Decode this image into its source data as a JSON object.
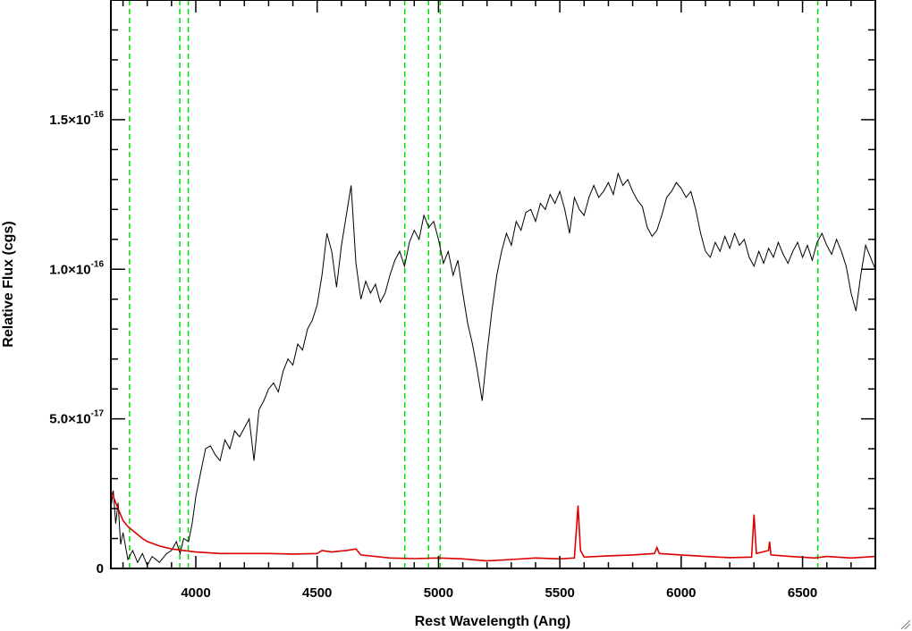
{
  "chart_data": {
    "type": "line",
    "title": "",
    "xlabel": "Rest Wavelength (Ang)",
    "ylabel": "Relative Flux (cgs)",
    "xlim": [
      3650,
      6800
    ],
    "ylim": [
      0,
      1.9e-16
    ],
    "x_ticks": [
      {
        "value": 4000,
        "label": "4000"
      },
      {
        "value": 4500,
        "label": "4500"
      },
      {
        "value": 5000,
        "label": "5000"
      },
      {
        "value": 5500,
        "label": "5500"
      },
      {
        "value": 6000,
        "label": "6000"
      },
      {
        "value": 6500,
        "label": "6500"
      }
    ],
    "y_ticks": [
      {
        "value": 0,
        "base": "0",
        "exp": ""
      },
      {
        "value": 5e-17,
        "base": "5.0×10",
        "exp": "-17"
      },
      {
        "value": 1e-16,
        "base": "1.0×10",
        "exp": "-16"
      },
      {
        "value": 1.5e-16,
        "base": "1.5×10",
        "exp": "-16"
      }
    ],
    "reference_lines": {
      "color": "#00dd00",
      "style": "dashed",
      "x": [
        3727,
        3934,
        3969,
        4861,
        4959,
        5007,
        6563
      ]
    },
    "series": [
      {
        "color": "#000000",
        "points": [
          [
            3650,
            2e-17
          ],
          [
            3660,
            2.6e-17
          ],
          [
            3670,
            1.5e-17
          ],
          [
            3680,
            2.2e-17
          ],
          [
            3690,
            8e-18
          ],
          [
            3700,
            1.2e-17
          ],
          [
            3720,
            3e-18
          ],
          [
            3740,
            6e-18
          ],
          [
            3760,
            2e-18
          ],
          [
            3780,
            5e-18
          ],
          [
            3800,
            1e-18
          ],
          [
            3820,
            4e-18
          ],
          [
            3850,
            2e-18
          ],
          [
            3880,
            5e-18
          ],
          [
            3900,
            6e-18
          ],
          [
            3920,
            9e-18
          ],
          [
            3935,
            5e-18
          ],
          [
            3950,
            1e-17
          ],
          [
            3970,
            9e-18
          ],
          [
            3985,
            1.5e-17
          ],
          [
            4000,
            2.4e-17
          ],
          [
            4020,
            3.2e-17
          ],
          [
            4040,
            4e-17
          ],
          [
            4060,
            4.1e-17
          ],
          [
            4080,
            3.8e-17
          ],
          [
            4100,
            3.6e-17
          ],
          [
            4120,
            4.3e-17
          ],
          [
            4140,
            4e-17
          ],
          [
            4160,
            4.6e-17
          ],
          [
            4180,
            4.4e-17
          ],
          [
            4200,
            4.7e-17
          ],
          [
            4220,
            5e-17
          ],
          [
            4240,
            3.6e-17
          ],
          [
            4260,
            5.3e-17
          ],
          [
            4280,
            5.6e-17
          ],
          [
            4300,
            6e-17
          ],
          [
            4320,
            6.2e-17
          ],
          [
            4340,
            5.9e-17
          ],
          [
            4360,
            6.6e-17
          ],
          [
            4380,
            7e-17
          ],
          [
            4400,
            6.8e-17
          ],
          [
            4420,
            7.5e-17
          ],
          [
            4440,
            7.3e-17
          ],
          [
            4460,
            8e-17
          ],
          [
            4480,
            8.3e-17
          ],
          [
            4500,
            8.8e-17
          ],
          [
            4520,
            9.8e-17
          ],
          [
            4540,
            1.12e-16
          ],
          [
            4560,
            1.06e-16
          ],
          [
            4580,
            9.4e-17
          ],
          [
            4600,
            1.08e-16
          ],
          [
            4620,
            1.18e-16
          ],
          [
            4640,
            1.28e-16
          ],
          [
            4660,
            1.02e-16
          ],
          [
            4680,
            9e-17
          ],
          [
            4700,
            9.6e-17
          ],
          [
            4720,
            9.2e-17
          ],
          [
            4740,
            9.5e-17
          ],
          [
            4760,
            8.9e-17
          ],
          [
            4780,
            9.2e-17
          ],
          [
            4800,
            9.8e-17
          ],
          [
            4820,
            1.03e-16
          ],
          [
            4840,
            1.06e-16
          ],
          [
            4860,
            1.01e-16
          ],
          [
            4880,
            1.09e-16
          ],
          [
            4900,
            1.13e-16
          ],
          [
            4920,
            1.1e-16
          ],
          [
            4940,
            1.18e-16
          ],
          [
            4960,
            1.14e-16
          ],
          [
            4980,
            1.16e-16
          ],
          [
            5000,
            1.1e-16
          ],
          [
            5020,
            1.02e-16
          ],
          [
            5040,
            1.06e-16
          ],
          [
            5060,
            9.8e-17
          ],
          [
            5080,
            1.03e-16
          ],
          [
            5100,
            9.2e-17
          ],
          [
            5120,
            8.2e-17
          ],
          [
            5140,
            7.5e-17
          ],
          [
            5160,
            6.6e-17
          ],
          [
            5180,
            5.6e-17
          ],
          [
            5200,
            7.2e-17
          ],
          [
            5220,
            8.6e-17
          ],
          [
            5240,
            9.8e-17
          ],
          [
            5260,
            1.06e-16
          ],
          [
            5280,
            1.12e-16
          ],
          [
            5300,
            1.08e-16
          ],
          [
            5320,
            1.16e-16
          ],
          [
            5340,
            1.13e-16
          ],
          [
            5360,
            1.19e-16
          ],
          [
            5380,
            1.2e-16
          ],
          [
            5400,
            1.16e-16
          ],
          [
            5420,
            1.22e-16
          ],
          [
            5440,
            1.2e-16
          ],
          [
            5460,
            1.25e-16
          ],
          [
            5480,
            1.22e-16
          ],
          [
            5500,
            1.26e-16
          ],
          [
            5520,
            1.2e-16
          ],
          [
            5540,
            1.12e-16
          ],
          [
            5560,
            1.24e-16
          ],
          [
            5580,
            1.2e-16
          ],
          [
            5600,
            1.18e-16
          ],
          [
            5620,
            1.24e-16
          ],
          [
            5640,
            1.28e-16
          ],
          [
            5660,
            1.24e-16
          ],
          [
            5680,
            1.26e-16
          ],
          [
            5700,
            1.29e-16
          ],
          [
            5720,
            1.25e-16
          ],
          [
            5740,
            1.32e-16
          ],
          [
            5760,
            1.28e-16
          ],
          [
            5780,
            1.3e-16
          ],
          [
            5800,
            1.26e-16
          ],
          [
            5820,
            1.23e-16
          ],
          [
            5840,
            1.21e-16
          ],
          [
            5860,
            1.14e-16
          ],
          [
            5880,
            1.11e-16
          ],
          [
            5900,
            1.13e-16
          ],
          [
            5920,
            1.18e-16
          ],
          [
            5940,
            1.24e-16
          ],
          [
            5960,
            1.26e-16
          ],
          [
            5980,
            1.29e-16
          ],
          [
            6000,
            1.27e-16
          ],
          [
            6020,
            1.24e-16
          ],
          [
            6040,
            1.26e-16
          ],
          [
            6060,
            1.2e-16
          ],
          [
            6080,
            1.12e-16
          ],
          [
            6100,
            1.06e-16
          ],
          [
            6120,
            1.04e-16
          ],
          [
            6140,
            1.09e-16
          ],
          [
            6160,
            1.06e-16
          ],
          [
            6180,
            1.11e-16
          ],
          [
            6200,
            1.07e-16
          ],
          [
            6220,
            1.12e-16
          ],
          [
            6240,
            1.08e-16
          ],
          [
            6260,
            1.1e-16
          ],
          [
            6280,
            1.04e-16
          ],
          [
            6300,
            1.01e-16
          ],
          [
            6320,
            1.06e-16
          ],
          [
            6340,
            1.02e-16
          ],
          [
            6360,
            1.07e-16
          ],
          [
            6380,
            1.04e-16
          ],
          [
            6400,
            1.09e-16
          ],
          [
            6420,
            1.05e-16
          ],
          [
            6440,
            1.02e-16
          ],
          [
            6460,
            1.06e-16
          ],
          [
            6480,
            1.09e-16
          ],
          [
            6500,
            1.04e-16
          ],
          [
            6520,
            1.08e-16
          ],
          [
            6540,
            1.03e-16
          ],
          [
            6560,
            1.09e-16
          ],
          [
            6580,
            1.12e-16
          ],
          [
            6600,
            1.08e-16
          ],
          [
            6620,
            1.05e-16
          ],
          [
            6640,
            1.1e-16
          ],
          [
            6660,
            1.06e-16
          ],
          [
            6680,
            1.01e-16
          ],
          [
            6700,
            9.2e-17
          ],
          [
            6720,
            8.6e-17
          ],
          [
            6740,
            9.8e-17
          ],
          [
            6760,
            1.08e-16
          ],
          [
            6780,
            1.04e-16
          ],
          [
            6800,
            1e-16
          ]
        ]
      },
      {
        "color": "#dd0000",
        "points": [
          [
            3650,
            2.6e-17
          ],
          [
            3660,
            2.4e-17
          ],
          [
            3680,
            2e-17
          ],
          [
            3700,
            1.6e-17
          ],
          [
            3720,
            1.4e-17
          ],
          [
            3750,
            1.2e-17
          ],
          [
            3780,
            1e-17
          ],
          [
            3800,
            9e-18
          ],
          [
            3850,
            7.5e-18
          ],
          [
            3900,
            6.5e-18
          ],
          [
            3950,
            6e-18
          ],
          [
            4000,
            5.5e-18
          ],
          [
            4100,
            5e-18
          ],
          [
            4200,
            5e-18
          ],
          [
            4300,
            5e-18
          ],
          [
            4400,
            4.8e-18
          ],
          [
            4500,
            5e-18
          ],
          [
            4520,
            6e-18
          ],
          [
            4560,
            5.5e-18
          ],
          [
            4620,
            6e-18
          ],
          [
            4660,
            6.5e-18
          ],
          [
            4680,
            4.5e-18
          ],
          [
            4800,
            3.5e-18
          ],
          [
            4900,
            3.3e-18
          ],
          [
            5000,
            3.5e-18
          ],
          [
            5100,
            3.2e-18
          ],
          [
            5200,
            2.5e-18
          ],
          [
            5300,
            3e-18
          ],
          [
            5400,
            3.5e-18
          ],
          [
            5500,
            3.2e-18
          ],
          [
            5560,
            3.5e-18
          ],
          [
            5575,
            2.1e-17
          ],
          [
            5585,
            6e-18
          ],
          [
            5600,
            3.8e-18
          ],
          [
            5700,
            4.2e-18
          ],
          [
            5800,
            4.5e-18
          ],
          [
            5890,
            5e-18
          ],
          [
            5900,
            7e-18
          ],
          [
            5910,
            5e-18
          ],
          [
            6000,
            4.5e-18
          ],
          [
            6100,
            4e-18
          ],
          [
            6200,
            3.6e-18
          ],
          [
            6290,
            3.8e-18
          ],
          [
            6300,
            1.8e-17
          ],
          [
            6310,
            5e-18
          ],
          [
            6360,
            6e-18
          ],
          [
            6364,
            9e-18
          ],
          [
            6370,
            4.5e-18
          ],
          [
            6450,
            4e-18
          ],
          [
            6550,
            3.5e-18
          ],
          [
            6600,
            4e-18
          ],
          [
            6700,
            3.5e-18
          ],
          [
            6800,
            4e-18
          ]
        ]
      }
    ]
  }
}
